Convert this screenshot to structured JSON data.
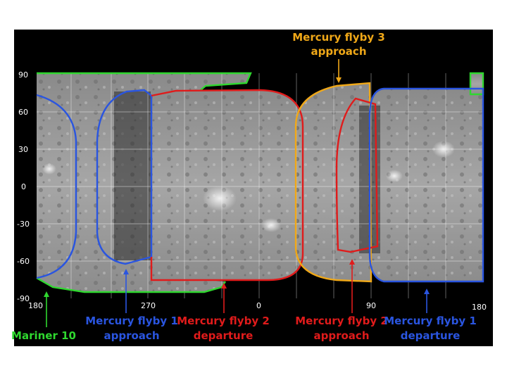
{
  "map": {
    "lat_labels": [
      "90",
      "60",
      "30",
      "0",
      "-30",
      "-60",
      "-90"
    ],
    "lon_labels": [
      "180",
      "270",
      "0",
      "90",
      "180"
    ]
  },
  "coverage": [
    {
      "id": "mariner10",
      "color": "#2fd82f"
    },
    {
      "id": "flyby1_approach",
      "color": "#2a55e0"
    },
    {
      "id": "flyby2_departure",
      "color": "#e01b1b"
    },
    {
      "id": "flyby3_approach",
      "color": "#f0a818"
    },
    {
      "id": "flyby2_approach",
      "color": "#e01b1b"
    },
    {
      "id": "flyby1_departure",
      "color": "#2a55e0"
    }
  ],
  "captions": {
    "flyby3_top_line1": "Mercury flyby 3",
    "flyby3_top_line2": "approach",
    "mariner10": "Mariner 10",
    "flyby1_approach_line1": "Mercury flyby 1",
    "flyby1_approach_line2": "approach",
    "flyby2_departure_line1": "Mercury flyby 2",
    "flyby2_departure_line2": "departure",
    "flyby2_approach_line1": "Mercury flyby 2",
    "flyby2_approach_line2": "approach",
    "flyby1_departure_line1": "Mercury flyby 1",
    "flyby1_departure_line2": "departure"
  },
  "colors": {
    "green": "#2fd82f",
    "blue": "#2a55e0",
    "red": "#e01b1b",
    "orange": "#f0a818"
  }
}
